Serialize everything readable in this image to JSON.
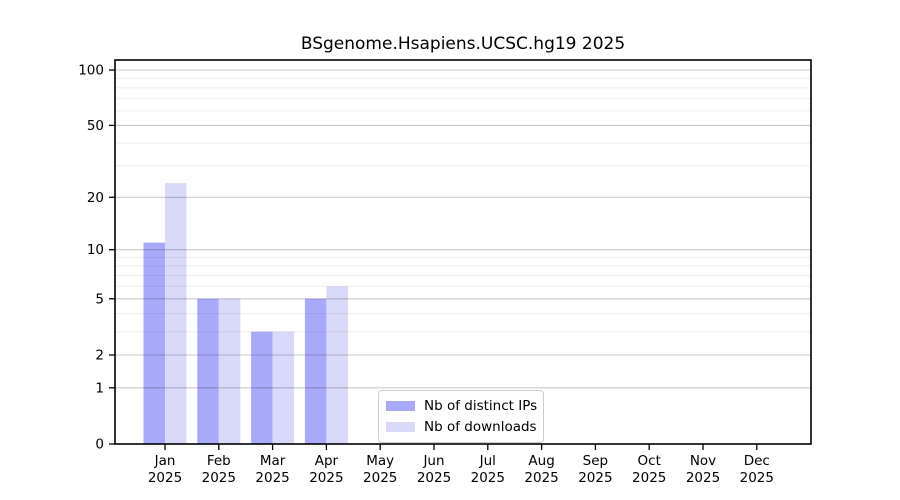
{
  "chart_data": {
    "type": "bar",
    "title": "BSgenome.Hsapiens.UCSC.hg19 2025",
    "xlabel": "",
    "ylabel": "",
    "year": "2025",
    "categories": [
      "Jan",
      "Feb",
      "Mar",
      "Apr",
      "May",
      "Jun",
      "Jul",
      "Aug",
      "Sep",
      "Oct",
      "Nov",
      "Dec"
    ],
    "series": [
      {
        "name": "Nb of distinct IPs",
        "color": "#a9a9fa",
        "values": [
          11,
          5,
          3,
          5,
          0,
          0,
          0,
          0,
          0,
          0,
          0,
          0
        ]
      },
      {
        "name": "Nb of downloads",
        "color": "#d9d9fa",
        "values": [
          24,
          5,
          3,
          6,
          0,
          0,
          0,
          0,
          0,
          0,
          0,
          0
        ]
      }
    ],
    "yscale": "log1p",
    "ylim": [
      0,
      113
    ],
    "yticks": [
      0,
      1,
      2,
      5,
      10,
      20,
      50,
      100
    ],
    "yminorticks": [
      3,
      4,
      6,
      7,
      8,
      9,
      30,
      40,
      60,
      70,
      80,
      90
    ],
    "grid": true,
    "legend_position": "lower-center"
  },
  "colors": {
    "major_grid": "rgba(0,0,0,0.21)",
    "minor_grid": "rgba(0,0,0,0.07)",
    "spine": "#000000"
  }
}
